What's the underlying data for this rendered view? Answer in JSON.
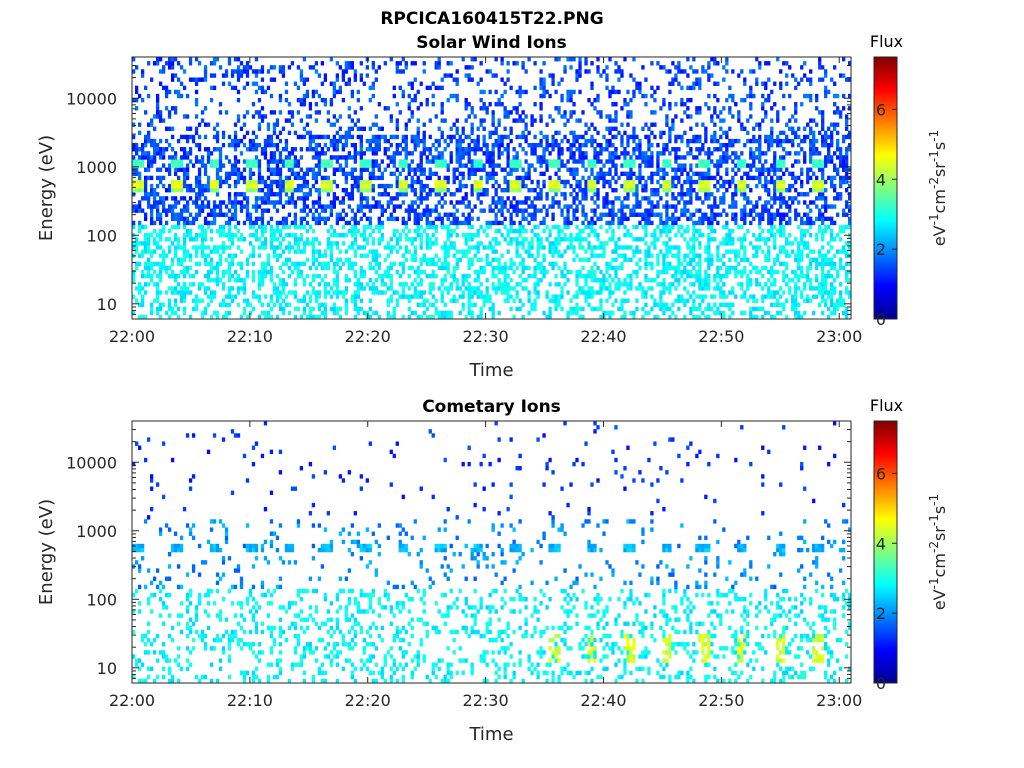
{
  "figure": {
    "title": "RPCICA160415T22.PNG"
  },
  "chart_data": [
    {
      "type": "heatmap",
      "title": "Solar Wind Ions",
      "xlabel": "Time",
      "ylabel": "Energy (eV)",
      "x_ticks": [
        "22:00",
        "22:10",
        "22:20",
        "22:30",
        "22:40",
        "22:50",
        "23:00"
      ],
      "x_range": [
        "22:00",
        "23:01"
      ],
      "y_ticks": [
        {
          "value": 10,
          "label": "10"
        },
        {
          "value": 100,
          "label": "100"
        },
        {
          "value": 1000,
          "label": "1000"
        },
        {
          "value": 10000,
          "label": "10000"
        }
      ],
      "y_scale": "log",
      "y_range": [
        6,
        40000
      ],
      "colorbar": {
        "title": "Flux",
        "label": "eV-1cm-2sr-1s-1",
        "range": [
          0,
          7.5
        ],
        "ticks": [
          "0",
          "2",
          "4",
          "6"
        ],
        "colormap": "jet"
      },
      "features": {
        "scan_period_minutes": 3.2,
        "peak_energy_eV": 550,
        "peak_flux": 4.5,
        "secondary_energy_eV": 1150,
        "secondary_flux": 3.0,
        "background_flux_high_energy": 1.0,
        "background_flux_low_energy": 2.5
      }
    },
    {
      "type": "heatmap",
      "title": "Cometary Ions",
      "xlabel": "Time",
      "ylabel": "Energy (eV)",
      "x_ticks": [
        "22:00",
        "22:10",
        "22:20",
        "22:30",
        "22:40",
        "22:50",
        "23:00"
      ],
      "x_range": [
        "22:00",
        "23:01"
      ],
      "y_ticks": [
        {
          "value": 10,
          "label": "10"
        },
        {
          "value": 100,
          "label": "100"
        },
        {
          "value": 1000,
          "label": "1000"
        },
        {
          "value": 10000,
          "label": "10000"
        }
      ],
      "y_scale": "log",
      "y_range": [
        6,
        40000
      ],
      "colorbar": {
        "title": "Flux",
        "label": "eV-1cm-2sr-1s-1",
        "range": [
          0,
          7.5
        ],
        "ticks": [
          "0",
          "2",
          "4",
          "6"
        ],
        "colormap": "jet"
      },
      "features": {
        "scan_period_minutes": 3.2,
        "peak_energy_eV": 530,
        "peak_flux": 2.0,
        "low_energy_burst_eV": 20,
        "low_energy_burst_flux": 4.0,
        "background_flux_low_energy": 2.5
      }
    }
  ]
}
